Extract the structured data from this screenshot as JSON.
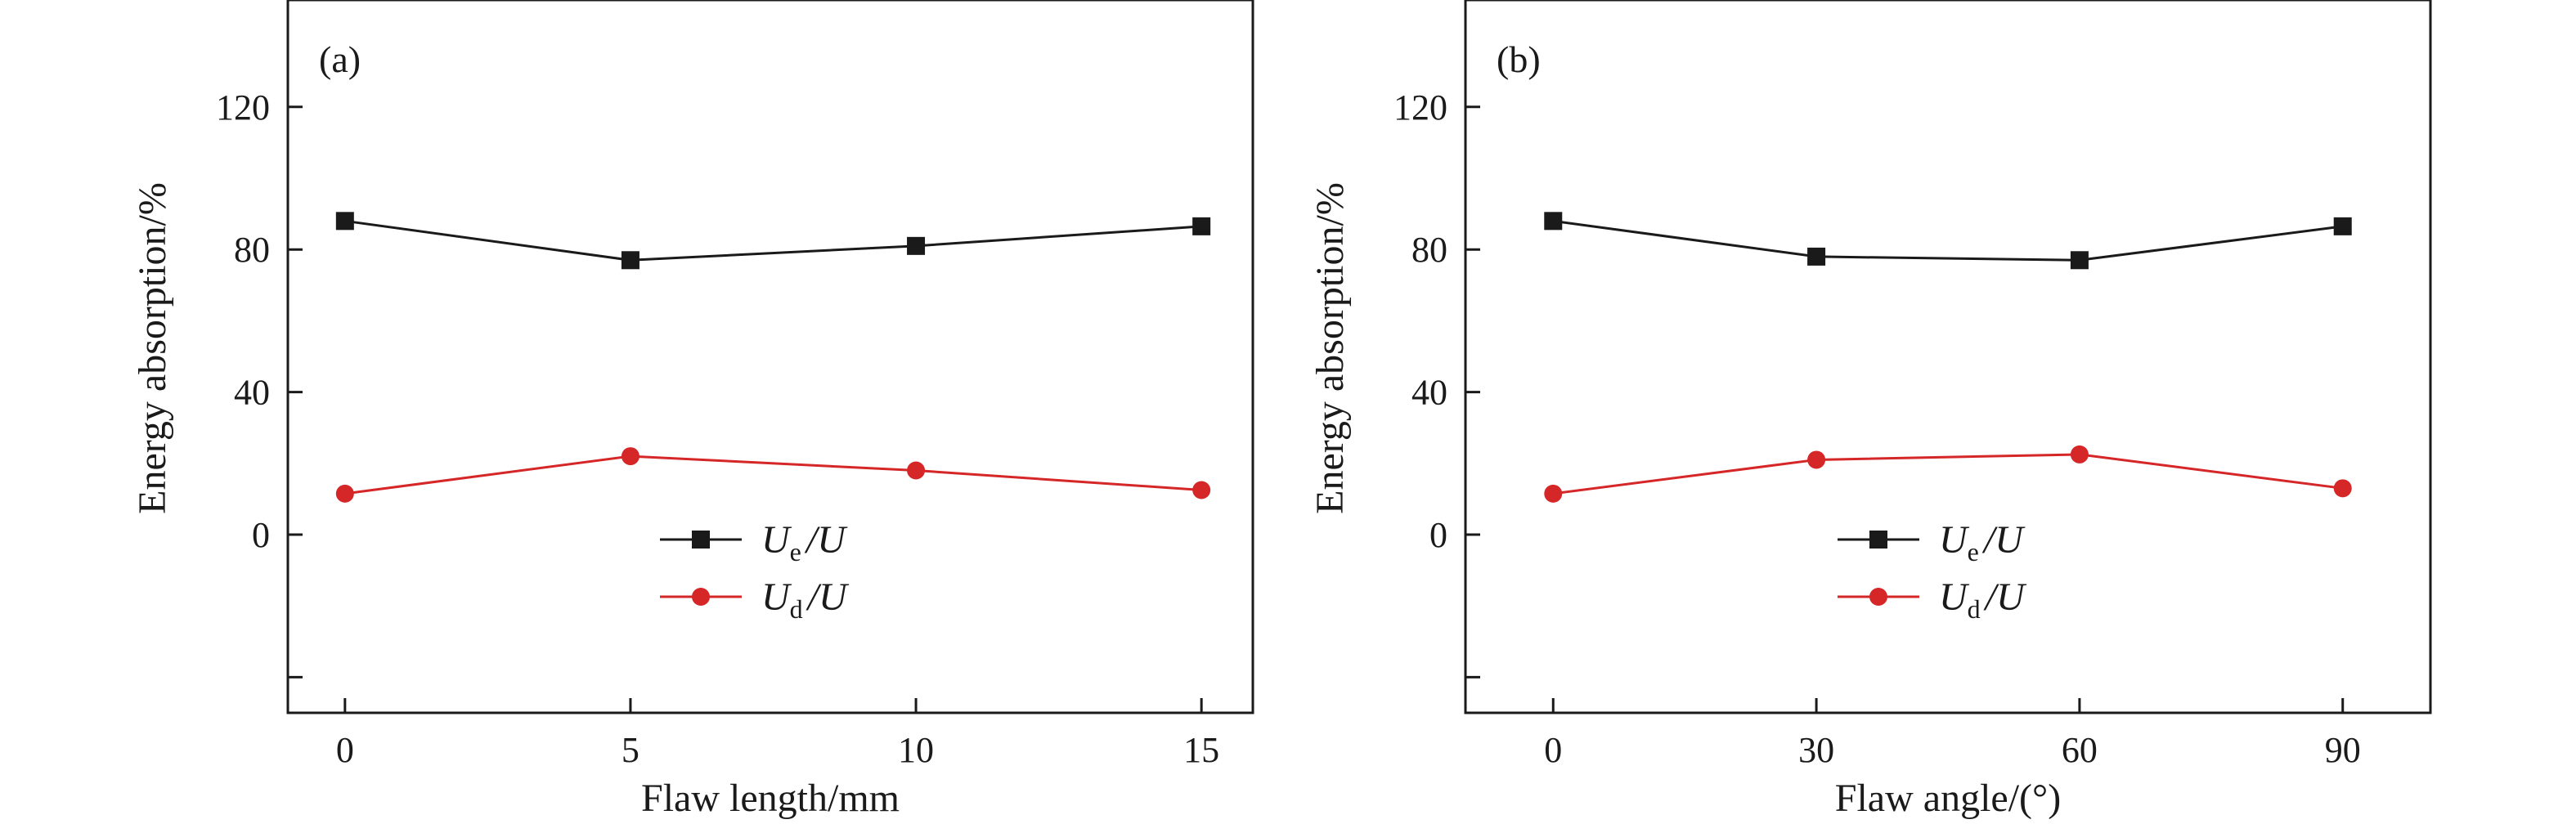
{
  "colors": {
    "series_ue": "#1a1a1a",
    "series_ud": "#d62728",
    "axis": "#1a1a1a"
  },
  "chart_data": [
    {
      "type": "line",
      "panel_label": "(a)",
      "xlabel": "Flaw length/mm",
      "ylabel": "Energy absorption/%",
      "x": [
        0,
        5,
        10,
        15
      ],
      "x_ticks": [
        "0",
        "5",
        "10",
        "15"
      ],
      "xlim": [
        -1,
        15.9
      ],
      "ylim": [
        -50,
        150
      ],
      "y_ticks": [
        0,
        40,
        80,
        120
      ],
      "y_ticks_unlabeled": [
        -40
      ],
      "grid": false,
      "legend_position": "lower-center",
      "series": [
        {
          "name_main": "U",
          "name_sub": "e",
          "name_rest": "/U",
          "marker": "square",
          "color_key": "series_ue",
          "values": [
            88,
            77,
            81,
            86.5
          ]
        },
        {
          "name_main": "U",
          "name_sub": "d",
          "name_rest": "/U",
          "marker": "circle",
          "color_key": "series_ud",
          "values": [
            11.5,
            22,
            18,
            12.5
          ]
        }
      ]
    },
    {
      "type": "line",
      "panel_label": "(b)",
      "xlabel": "Flaw angle/(°)",
      "ylabel": "Energy absorption/%",
      "x": [
        0,
        30,
        60,
        90
      ],
      "x_ticks": [
        "0",
        "30",
        "60",
        "90"
      ],
      "xlim": [
        -10,
        100
      ],
      "ylim": [
        -50,
        150
      ],
      "y_ticks": [
        0,
        40,
        80,
        120
      ],
      "y_ticks_unlabeled": [
        -40
      ],
      "grid": false,
      "legend_position": "lower-center",
      "series": [
        {
          "name_main": "U",
          "name_sub": "e",
          "name_rest": "/U",
          "marker": "square",
          "color_key": "series_ue",
          "values": [
            88,
            78,
            77,
            86.5
          ]
        },
        {
          "name_main": "U",
          "name_sub": "d",
          "name_rest": "/U",
          "marker": "circle",
          "color_key": "series_ud",
          "values": [
            11.5,
            21,
            22.5,
            13
          ]
        }
      ]
    }
  ]
}
